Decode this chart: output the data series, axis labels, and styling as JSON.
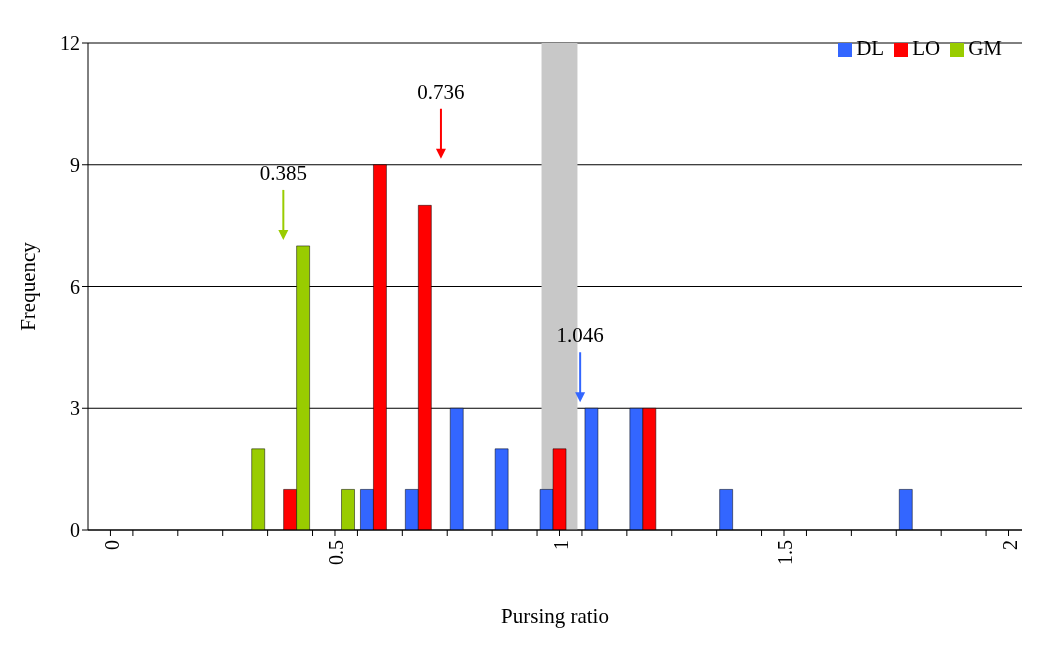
{
  "chart_data": {
    "type": "bar",
    "xlabel": "Pursing ratio",
    "ylabel": "Frequency",
    "x": [
      0,
      0.1,
      0.2,
      0.3,
      0.4,
      0.5,
      0.6,
      0.7,
      0.8,
      0.9,
      1,
      1.1,
      1.2,
      1.3,
      1.4,
      1.5,
      1.6,
      1.7,
      1.8,
      1.9,
      2
    ],
    "series": [
      {
        "name": "DL",
        "color": "#3366ff",
        "values": [
          0,
          0,
          0,
          0,
          0,
          0,
          1,
          1,
          3,
          2,
          1,
          3,
          3,
          0,
          1,
          0,
          0,
          0,
          1,
          0,
          0
        ]
      },
      {
        "name": "LO",
        "color": "#ff0000",
        "values": [
          0,
          0,
          0,
          0,
          1,
          0,
          9,
          8,
          0,
          0,
          2,
          0,
          3,
          0,
          0,
          0,
          0,
          0,
          0,
          0,
          0
        ]
      },
      {
        "name": "GM",
        "color": "#99cc00",
        "values": [
          0,
          0,
          0,
          2,
          7,
          1,
          0,
          0,
          0,
          0,
          0,
          0,
          0,
          0,
          0,
          0,
          0,
          0,
          0,
          0,
          0
        ]
      }
    ],
    "xlim": [
      -0.05,
      2.03
    ],
    "xticks": [
      0,
      {
        "value": 0.05,
        "label": null
      },
      {
        "value": 0.15,
        "label": null
      },
      {
        "value": 0.25,
        "label": null
      },
      {
        "value": 0.35,
        "label": null
      },
      {
        "value": 0.45,
        "label": null
      },
      0.5,
      {
        "value": 0.55,
        "label": null
      },
      {
        "value": 0.65,
        "label": null
      },
      {
        "value": 0.75,
        "label": null
      },
      {
        "value": 0.85,
        "label": null
      },
      {
        "value": 0.95,
        "label": null
      },
      1,
      {
        "value": 1.05,
        "label": null
      },
      {
        "value": 1.15,
        "label": null
      },
      {
        "value": 1.25,
        "label": null
      },
      {
        "value": 1.35,
        "label": null
      },
      {
        "value": 1.45,
        "label": null
      },
      1.5,
      {
        "value": 1.55,
        "label": null
      },
      {
        "value": 1.65,
        "label": null
      },
      {
        "value": 1.75,
        "label": null
      },
      {
        "value": 1.85,
        "label": null
      },
      {
        "value": 1.95,
        "label": null
      },
      2
    ],
    "ylim": [
      0,
      12
    ],
    "yticks": [
      0,
      3,
      6,
      9,
      12
    ],
    "grid": "y",
    "legend": "top right",
    "bands": [
      {
        "axis": "x",
        "from": 0.96,
        "to": 1.04,
        "color": "#c8c8c8"
      }
    ],
    "ref_lines": [
      {
        "axis": "x",
        "value": 1.046,
        "label": "1.046",
        "color": "#3366ff"
      },
      {
        "axis": "x",
        "value": 0.736,
        "label": "0.736",
        "color": "#ff0000"
      },
      {
        "axis": "x",
        "value": 0.385,
        "label": "0.385",
        "color": "#99cc00"
      }
    ]
  }
}
